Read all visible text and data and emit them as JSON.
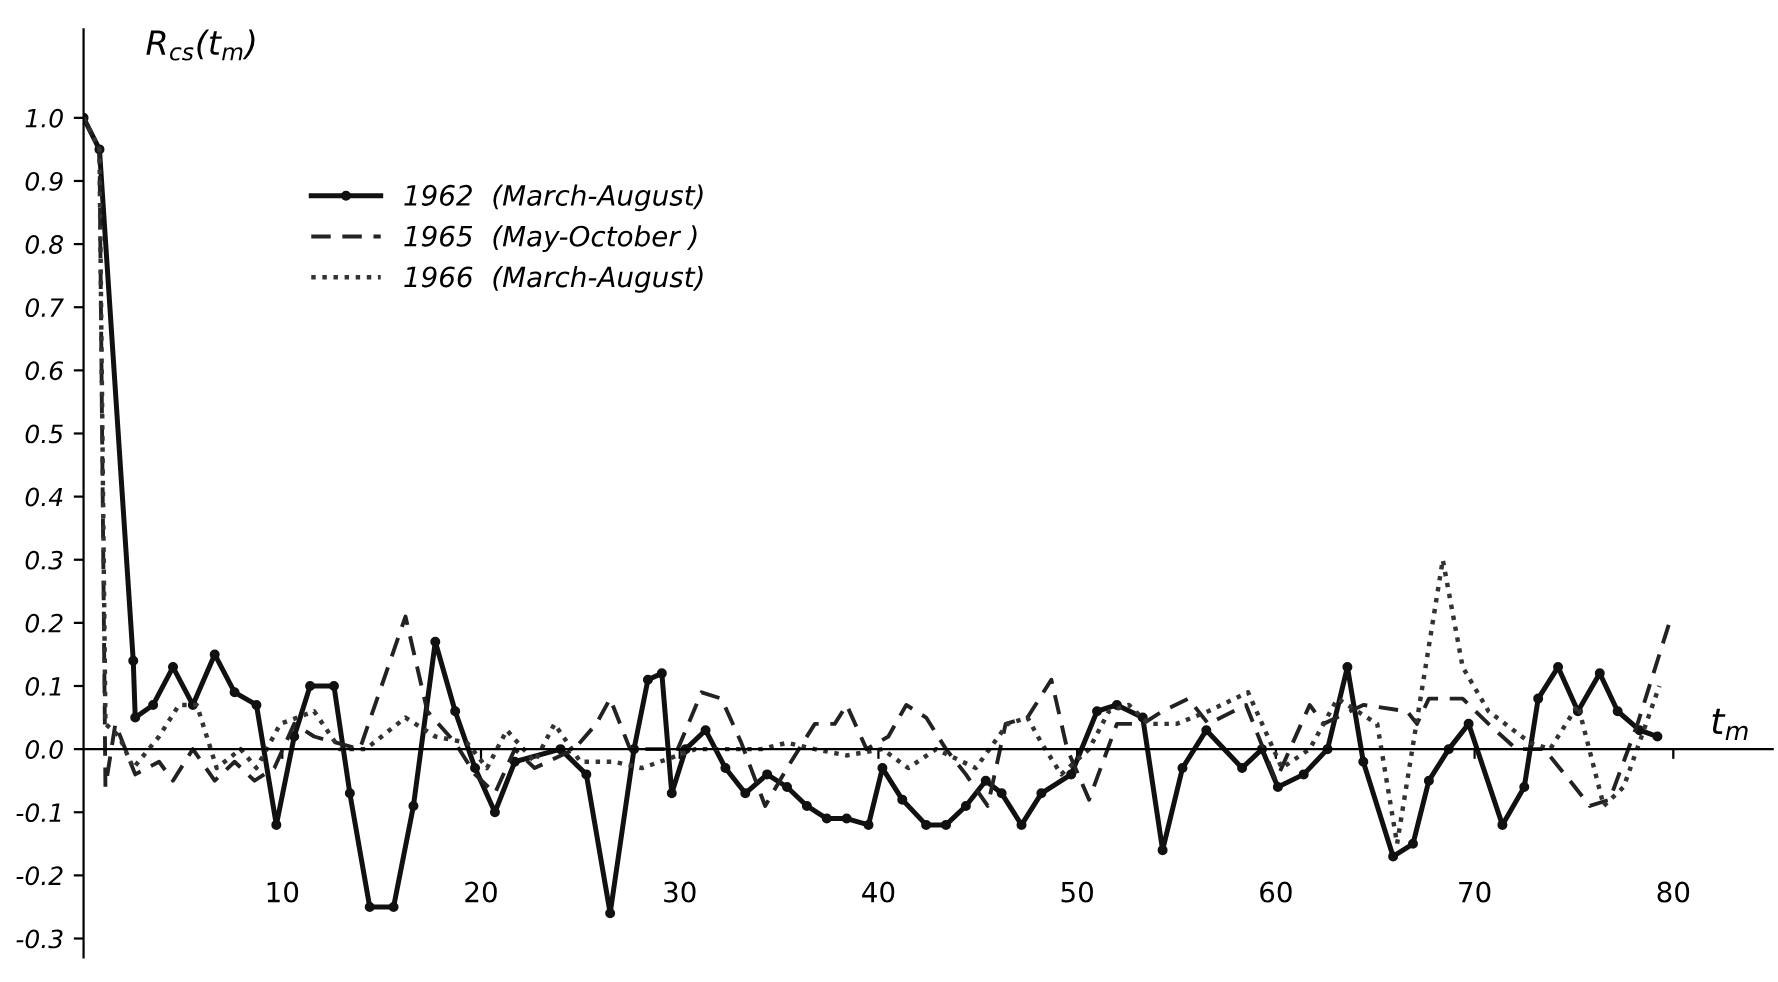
{
  "chart_data": {
    "type": "line",
    "ylabel": "R$_{cs}$(t$_{m}$)",
    "xlabel": "t$_{m}$",
    "xlim": [
      0,
      85
    ],
    "xticks": [
      10,
      20,
      30,
      40,
      50,
      60,
      70,
      80
    ],
    "ylim": [
      -0.33,
      1.14
    ],
    "yticks": [
      {
        "value": -0.3,
        "label": "-0.3"
      },
      {
        "value": -0.2,
        "label": "-0.2"
      },
      {
        "value": -0.1,
        "label": "-0.1"
      },
      {
        "value": 0,
        "label": "0.0"
      },
      {
        "value": 0.1,
        "label": "0.1"
      },
      {
        "value": 0.2,
        "label": "0.2"
      },
      {
        "value": 0.3,
        "label": "0.3"
      },
      {
        "value": 0.4,
        "label": "0.4"
      },
      {
        "value": 0.5,
        "label": "0.5"
      },
      {
        "value": 0.6,
        "label": "0.6"
      },
      {
        "value": 0.7,
        "label": "0.7"
      },
      {
        "value": 0.8,
        "label": "0.8"
      },
      {
        "value": 0.9,
        "label": "0.9"
      },
      {
        "value": 1,
        "label": "1.0"
      }
    ],
    "legend": "top left",
    "series": [
      {
        "name": "1962  (March-August)",
        "color": "#111111",
        "line_style": "solid",
        "marker": "circle",
        "x": [
          0,
          0.8,
          2.5,
          2.6,
          3.5,
          4.5,
          5.5,
          6.6,
          7.6,
          8.7,
          9.7,
          10.6,
          11.4,
          12.6,
          13.4,
          14.4,
          15.6,
          16.6,
          17.7,
          18.7,
          19.7,
          20.7,
          21.7,
          24.0,
          25.3,
          26.5,
          27.7,
          28.4,
          29.1,
          29.6,
          30.3,
          31.3,
          32.3,
          33.3,
          34.4,
          35.4,
          36.4,
          37.4,
          38.4,
          39.5,
          40.2,
          41.2,
          42.4,
          43.4,
          44.4,
          45.4,
          46.2,
          47.2,
          48.2,
          49.7,
          51.0,
          52.0,
          53.3,
          54.3,
          55.3,
          56.5,
          58.3,
          59.3,
          60.1,
          61.4,
          62.6,
          63.6,
          64.4,
          65.9,
          66.9,
          67.7,
          68.7,
          69.7,
          71.4,
          72.5,
          73.2,
          74.2,
          75.2,
          76.3,
          77.2,
          78.3,
          79.2
        ],
        "values": [
          1.0,
          0.95,
          0.14,
          0.05,
          0.07,
          0.13,
          0.07,
          0.15,
          0.09,
          0.07,
          -0.12,
          0.02,
          0.1,
          0.1,
          -0.07,
          -0.25,
          -0.25,
          -0.09,
          0.17,
          0.06,
          -0.03,
          -0.1,
          -0.02,
          0.0,
          -0.04,
          -0.26,
          0.0,
          0.11,
          0.12,
          -0.07,
          0.0,
          0.03,
          -0.03,
          -0.07,
          -0.04,
          -0.06,
          -0.09,
          -0.11,
          -0.11,
          -0.12,
          -0.03,
          -0.08,
          -0.12,
          -0.12,
          -0.09,
          -0.05,
          -0.07,
          -0.12,
          -0.07,
          -0.04,
          0.06,
          0.07,
          0.05,
          -0.16,
          -0.03,
          0.03,
          -0.03,
          0.0,
          -0.06,
          -0.04,
          0.0,
          0.13,
          -0.02,
          -0.17,
          -0.15,
          -0.05,
          0.0,
          0.04,
          -0.12,
          -0.06,
          0.08,
          0.13,
          0.06,
          0.12,
          0.06,
          0.03,
          0.02
        ]
      },
      {
        "name": "1965  (May-October )",
        "color": "#222222",
        "line_style": "dashed",
        "marker": "none",
        "x": [
          0,
          0.8,
          1.1,
          1.6,
          2.6,
          3.8,
          4.5,
          5.5,
          6.6,
          7.6,
          8.6,
          9.6,
          10.6,
          11.6,
          13.9,
          16.2,
          17.3,
          18.7,
          19.7,
          20.7,
          21.7,
          22.7,
          24.7,
          25.8,
          26.5,
          27.5,
          29.9,
          31.1,
          32.1,
          33.1,
          34.3,
          35.4,
          36.8,
          37.8,
          38.4,
          39.4,
          40.5,
          41.4,
          42.4,
          43.4,
          44.4,
          45.5,
          46.4,
          47.5,
          48.7,
          49.5,
          50.6,
          52.0,
          53.3,
          54.3,
          55.6,
          56.6,
          58.5,
          60.0,
          61.7,
          62.4,
          64.4,
          66.6,
          67.1,
          67.7,
          69.4,
          70.7,
          72.1,
          73.5,
          74.8,
          75.8,
          76.8,
          78.2,
          79.8
        ],
        "values": [
          1.0,
          0.95,
          -0.06,
          0.04,
          -0.04,
          -0.02,
          -0.05,
          0.0,
          -0.05,
          -0.02,
          -0.05,
          -0.03,
          0.04,
          0.02,
          0.0,
          0.21,
          0.06,
          0.01,
          -0.04,
          -0.07,
          0.0,
          -0.03,
          0.0,
          0.04,
          0.08,
          0.0,
          0.0,
          0.09,
          0.08,
          0.01,
          -0.09,
          -0.03,
          0.04,
          0.04,
          0.07,
          0.0,
          0.02,
          0.07,
          0.05,
          0.0,
          -0.04,
          -0.09,
          0.04,
          0.05,
          0.11,
          0.0,
          -0.08,
          0.04,
          0.04,
          0.06,
          0.08,
          0.04,
          0.07,
          -0.05,
          0.07,
          0.04,
          0.07,
          0.06,
          0.04,
          0.08,
          0.08,
          0.04,
          0.0,
          0.0,
          -0.05,
          -0.09,
          -0.08,
          0.04,
          0.2
        ]
      },
      {
        "name": "1966  (March-August)",
        "color": "#333333",
        "line_style": "dotted",
        "marker": "none",
        "x": [
          0,
          0.8,
          1.1,
          1.8,
          2.5,
          3.8,
          4.8,
          5.7,
          6.7,
          7.9,
          8.7,
          9.9,
          11.6,
          12.9,
          14.2,
          16.2,
          17.7,
          19.3,
          20.3,
          21.3,
          22.7,
          23.7,
          25.0,
          26.7,
          28.1,
          30.8,
          34.1,
          35.4,
          36.8,
          38.4,
          40.2,
          41.5,
          42.9,
          44.9,
          46.5,
          47.5,
          48.2,
          49.2,
          50.6,
          51.6,
          52.6,
          53.6,
          55.0,
          56.6,
          58.6,
          60.3,
          61.7,
          63.1,
          65.1,
          66.1,
          68.4,
          69.4,
          70.7,
          72.8,
          73.8,
          75.2,
          76.5,
          77.5,
          79.3
        ],
        "values": [
          1.0,
          0.95,
          0.04,
          0.02,
          -0.03,
          0.02,
          0.07,
          0.07,
          -0.03,
          0.0,
          -0.03,
          0.04,
          0.06,
          0.0,
          0.0,
          0.05,
          0.02,
          0.01,
          -0.03,
          0.03,
          -0.02,
          0.04,
          -0.02,
          -0.02,
          -0.03,
          0.0,
          0.0,
          0.01,
          0.0,
          -0.01,
          0.0,
          -0.03,
          0.0,
          -0.03,
          0.04,
          0.05,
          0.01,
          -0.04,
          0.0,
          0.06,
          0.07,
          0.04,
          0.04,
          0.06,
          0.09,
          -0.03,
          0.0,
          0.08,
          0.04,
          -0.15,
          0.3,
          0.13,
          0.06,
          0.01,
          0.0,
          0.07,
          -0.09,
          -0.06,
          0.1
        ]
      }
    ]
  }
}
